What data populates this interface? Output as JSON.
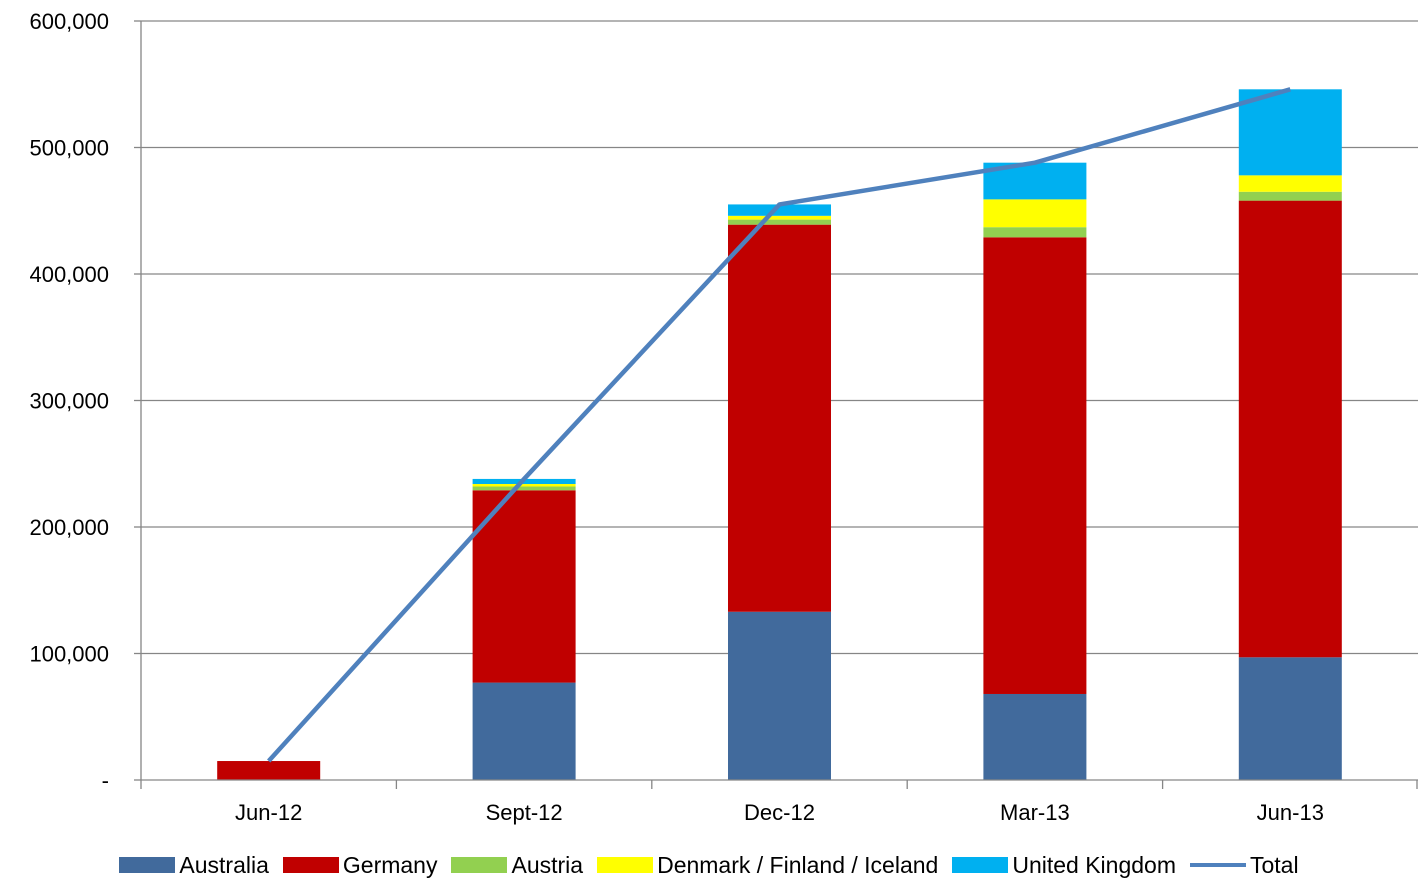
{
  "chart_data": {
    "type": "bar",
    "stacked": true,
    "title": "",
    "xlabel": "",
    "ylabel": "",
    "ylim": [
      0,
      600000
    ],
    "ytick_values": [
      0,
      100000,
      200000,
      300000,
      400000,
      500000,
      600000
    ],
    "ytick_labels": [
      "-",
      "100,000",
      "200,000",
      "300,000",
      "400,000",
      "500,000",
      "600,000"
    ],
    "grid": "horizontal",
    "legend_position": "bottom",
    "categories": [
      "Jun-12",
      "Sept-12",
      "Dec-12",
      "Mar-13",
      "Jun-13"
    ],
    "series": [
      {
        "name": "Australia",
        "type": "bar",
        "color": "#416A9C",
        "values": [
          0,
          77000,
          133000,
          68000,
          97000
        ]
      },
      {
        "name": "Germany",
        "type": "bar",
        "color": "#C00000",
        "values": [
          15000,
          152000,
          306000,
          361000,
          361000
        ]
      },
      {
        "name": "Austria",
        "type": "bar",
        "color": "#92D050",
        "values": [
          0,
          3000,
          4000,
          8000,
          7000
        ]
      },
      {
        "name": "Denmark / Finland / Iceland",
        "type": "bar",
        "color": "#FFFF00",
        "values": [
          0,
          2000,
          3000,
          22000,
          13000
        ]
      },
      {
        "name": "United Kingdom",
        "type": "bar",
        "color": "#00B0F0",
        "values": [
          0,
          4000,
          9000,
          29000,
          68000
        ]
      },
      {
        "name": "Total",
        "type": "line",
        "color": "#4F81BD",
        "values": [
          15000,
          238000,
          455000,
          488000,
          546000
        ]
      }
    ]
  }
}
